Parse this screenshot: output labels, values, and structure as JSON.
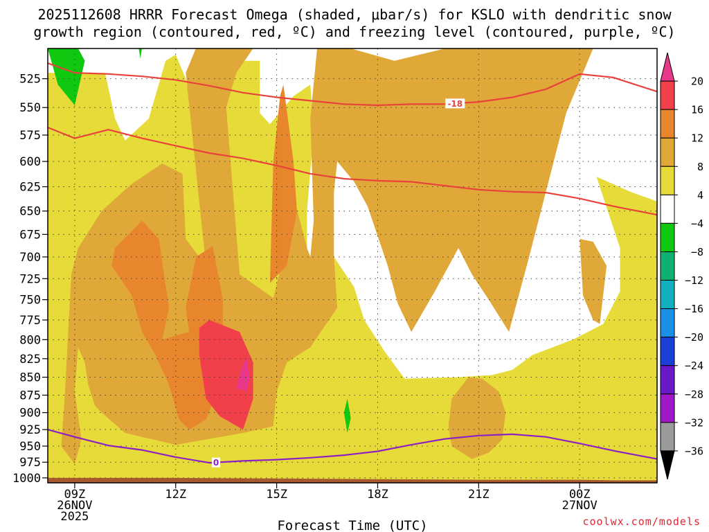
{
  "chart_data": {
    "type": "contour",
    "title_line1": "2025112608 HRRR Forecast Omega (shaded, μbar/s) for KSLO with dendritic snow",
    "title_line2": "growth region (contoured, red, ºC) and freezing level (contoured, purple, ºC)",
    "xlabel": "Forecast Time (UTC)",
    "x_range_hours": [
      -0.8,
      17.3
    ],
    "y_range_hpa": [
      1008,
      500
    ],
    "y_ticks": [
      525,
      550,
      575,
      600,
      625,
      650,
      675,
      700,
      725,
      750,
      775,
      800,
      825,
      850,
      875,
      900,
      925,
      950,
      975,
      1000
    ],
    "x_ticks": [
      {
        "hour": 0,
        "lines": [
          "09Z",
          "26NOV",
          "2025"
        ]
      },
      {
        "hour": 3,
        "lines": [
          "12Z"
        ]
      },
      {
        "hour": 6,
        "lines": [
          "15Z"
        ]
      },
      {
        "hour": 9,
        "lines": [
          "18Z"
        ]
      },
      {
        "hour": 12,
        "lines": [
          "21Z"
        ]
      },
      {
        "hour": 15,
        "lines": [
          "00Z",
          "27NOV"
        ]
      }
    ],
    "colorbar": {
      "levels": [
        20,
        16,
        12,
        8,
        4,
        -4,
        -8,
        -12,
        -16,
        -20,
        -24,
        -28,
        -32,
        -36
      ],
      "colors": [
        "#e8388a",
        "#f2404a",
        "#e8862e",
        "#e0a838",
        "#e6db38",
        "#ffffff",
        "#10c810",
        "#10b070",
        "#10b0c0",
        "#1a90e8",
        "#1a40d8",
        "#6a18c8",
        "#a018c8",
        "#9a9a9a",
        "#000000"
      ]
    },
    "shaded_regions": [
      {
        "level": 4,
        "color": "#e6db38",
        "points": [
          [
            -0.8,
            520
          ],
          [
            0.9,
            520
          ],
          [
            1.2,
            560
          ],
          [
            1.5,
            580
          ],
          [
            2.2,
            560
          ],
          [
            2.7,
            510
          ],
          [
            3.0,
            505
          ],
          [
            3.3,
            525
          ],
          [
            3.5,
            555
          ],
          [
            4.0,
            560
          ],
          [
            4.4,
            510
          ],
          [
            5.5,
            510
          ],
          [
            5.5,
            555
          ],
          [
            5.8,
            565
          ],
          [
            6.5,
            540
          ],
          [
            7.0,
            530
          ],
          [
            7.1,
            570
          ],
          [
            6.9,
            650
          ],
          [
            6.9,
            700
          ],
          [
            7.0,
            740
          ],
          [
            7.3,
            750
          ],
          [
            7.7,
            700
          ],
          [
            8.3,
            735
          ],
          [
            8.6,
            775
          ],
          [
            9.2,
            815
          ],
          [
            9.8,
            852
          ],
          [
            11.4,
            850
          ],
          [
            12.4,
            847
          ],
          [
            13.0,
            840
          ],
          [
            13.6,
            820
          ],
          [
            14.8,
            800
          ],
          [
            15.7,
            780
          ],
          [
            16.2,
            740
          ],
          [
            16.2,
            690
          ],
          [
            15.5,
            615
          ],
          [
            16.5,
            630
          ],
          [
            17.3,
            640
          ],
          [
            17.3,
            1008
          ],
          [
            -0.8,
            1008
          ]
        ]
      },
      {
        "level": 8,
        "color": "#e0a838",
        "points": [
          [
            0.0,
            978
          ],
          [
            -0.4,
            950
          ],
          [
            -0.3,
            880
          ],
          [
            -0.1,
            720
          ],
          [
            0.1,
            690
          ],
          [
            0.8,
            650
          ],
          [
            1.7,
            622
          ],
          [
            2.6,
            602
          ],
          [
            3.2,
            612
          ],
          [
            3.3,
            680
          ],
          [
            3.9,
            710
          ],
          [
            3.3,
            520
          ],
          [
            3.6,
            500
          ],
          [
            5.3,
            500
          ],
          [
            4.8,
            520
          ],
          [
            4.5,
            550
          ],
          [
            4.9,
            720
          ],
          [
            5.9,
            748
          ],
          [
            6.4,
            670
          ],
          [
            6.6,
            648
          ],
          [
            6.9,
            690
          ],
          [
            7.0,
            700
          ],
          [
            7.1,
            660
          ],
          [
            7.0,
            560
          ],
          [
            7.2,
            500
          ],
          [
            8.2,
            500
          ],
          [
            9.5,
            510
          ],
          [
            11.0,
            500
          ],
          [
            15.4,
            500
          ],
          [
            14.6,
            555
          ],
          [
            13.5,
            700
          ],
          [
            12.9,
            790
          ],
          [
            12.3,
            750
          ],
          [
            11.8,
            720
          ],
          [
            11.4,
            690
          ],
          [
            10.7,
            740
          ],
          [
            10.0,
            790
          ],
          [
            9.6,
            755
          ],
          [
            9.3,
            710
          ],
          [
            8.7,
            645
          ],
          [
            8.3,
            620
          ],
          [
            7.8,
            600
          ],
          [
            7.7,
            630
          ],
          [
            7.7,
            700
          ],
          [
            7.8,
            760
          ],
          [
            7.0,
            810
          ],
          [
            6.3,
            830
          ],
          [
            6.0,
            870
          ],
          [
            5.9,
            920
          ],
          [
            5.0,
            930
          ],
          [
            3.0,
            948
          ],
          [
            2.0,
            936
          ],
          [
            1.5,
            930
          ],
          [
            0.8,
            900
          ],
          [
            0.6,
            890
          ],
          [
            0.4,
            860
          ],
          [
            0.3,
            830
          ],
          [
            0.1,
            810
          ],
          [
            0.0,
            870
          ],
          [
            0.2,
            940
          ]
        ]
      },
      {
        "level": 8,
        "color": "#e0a838",
        "points": [
          [
            11.7,
            850
          ],
          [
            11.2,
            880
          ],
          [
            11.1,
            920
          ],
          [
            11.2,
            950
          ],
          [
            11.8,
            970
          ],
          [
            12.3,
            960
          ],
          [
            12.7,
            940
          ],
          [
            12.8,
            900
          ],
          [
            12.6,
            870
          ],
          [
            12.1,
            852
          ]
        ]
      },
      {
        "level": 8,
        "color": "#e0a838",
        "points": [
          [
            15.0,
            680
          ],
          [
            15.4,
            683
          ],
          [
            15.8,
            710
          ],
          [
            15.6,
            780
          ],
          [
            15.4,
            775
          ],
          [
            15.1,
            745
          ]
        ]
      },
      {
        "level": 12,
        "color": "#e8862e",
        "points": [
          [
            1.7,
            745
          ],
          [
            1.1,
            710
          ],
          [
            1.2,
            690
          ],
          [
            2.0,
            660
          ],
          [
            2.5,
            680
          ],
          [
            2.8,
            760
          ],
          [
            2.6,
            800
          ],
          [
            3.4,
            790
          ],
          [
            3.3,
            760
          ],
          [
            3.6,
            700
          ],
          [
            4.1,
            688
          ],
          [
            4.4,
            750
          ],
          [
            4.4,
            850
          ],
          [
            3.9,
            910
          ],
          [
            3.4,
            925
          ],
          [
            3.1,
            910
          ],
          [
            2.8,
            860
          ],
          [
            2.4,
            820
          ],
          [
            2.0,
            790
          ]
        ]
      },
      {
        "level": 12,
        "color": "#e8862e",
        "points": [
          [
            5.8,
            730
          ],
          [
            5.9,
            600
          ],
          [
            6.1,
            540
          ],
          [
            6.2,
            530
          ],
          [
            6.5,
            600
          ],
          [
            6.6,
            650
          ],
          [
            6.3,
            710
          ]
        ]
      },
      {
        "level": 16,
        "color": "#f2404a",
        "points": [
          [
            3.7,
            785
          ],
          [
            4.0,
            775
          ],
          [
            4.9,
            790
          ],
          [
            5.3,
            830
          ],
          [
            5.3,
            880
          ],
          [
            5.0,
            925
          ],
          [
            4.3,
            905
          ],
          [
            3.9,
            880
          ],
          [
            3.7,
            820
          ]
        ]
      },
      {
        "level": 20,
        "color": "#e8388a",
        "points": [
          [
            5.0,
            832
          ],
          [
            5.1,
            825
          ],
          [
            5.2,
            850
          ],
          [
            5.1,
            870
          ],
          [
            4.8,
            865
          ]
        ]
      },
      {
        "level": -4,
        "color": "#10c810",
        "points": [
          [
            -0.8,
            500
          ],
          [
            0.1,
            500
          ],
          [
            0.3,
            510
          ],
          [
            0.0,
            548
          ],
          [
            -0.5,
            530
          ]
        ]
      },
      {
        "level": -4,
        "color": "#10c810",
        "points": [
          [
            8.0,
            900
          ],
          [
            8.1,
            880
          ],
          [
            8.2,
            908
          ],
          [
            8.1,
            930
          ]
        ]
      },
      {
        "level": -4,
        "color": "#10c810",
        "points": [
          [
            1.9,
            500
          ],
          [
            2.0,
            500
          ],
          [
            1.95,
            508
          ]
        ]
      }
    ],
    "contours": [
      {
        "name": "dendritic-top",
        "value": -18,
        "color": "#e8423a",
        "label": "-18",
        "label_hour": 11.3,
        "points": [
          [
            -0.8,
            512
          ],
          [
            0,
            520
          ],
          [
            1,
            521
          ],
          [
            2,
            523
          ],
          [
            3,
            526
          ],
          [
            4,
            531
          ],
          [
            5,
            537
          ],
          [
            6,
            541
          ],
          [
            7,
            544
          ],
          [
            8,
            547
          ],
          [
            9,
            548
          ],
          [
            10,
            547
          ],
          [
            11,
            547
          ],
          [
            12,
            545
          ],
          [
            13,
            541
          ],
          [
            14,
            534
          ],
          [
            15,
            521
          ],
          [
            16,
            524
          ],
          [
            17.3,
            536
          ]
        ]
      },
      {
        "name": "dendritic-bottom",
        "value": -12,
        "color": "#e8423a",
        "label": "",
        "label_hour": 0,
        "points": [
          [
            -0.8,
            568
          ],
          [
            0,
            578
          ],
          [
            1,
            570
          ],
          [
            2,
            578
          ],
          [
            3,
            585
          ],
          [
            4,
            592
          ],
          [
            5,
            597
          ],
          [
            6,
            604
          ],
          [
            7,
            612
          ],
          [
            8,
            617
          ],
          [
            9,
            619
          ],
          [
            10,
            620
          ],
          [
            11,
            624
          ],
          [
            12,
            628
          ],
          [
            13,
            630
          ],
          [
            14,
            631
          ],
          [
            15,
            637
          ],
          [
            16,
            645
          ],
          [
            17.3,
            654
          ]
        ]
      },
      {
        "name": "freezing-level",
        "value": 0,
        "color": "#8c20c4",
        "label": "0",
        "label_hour": 4.2,
        "points": [
          [
            -0.8,
            925
          ],
          [
            0,
            936
          ],
          [
            1,
            949
          ],
          [
            2,
            956
          ],
          [
            3,
            967
          ],
          [
            4,
            976
          ],
          [
            5,
            973
          ],
          [
            6,
            971
          ],
          [
            7,
            968
          ],
          [
            8,
            964
          ],
          [
            9,
            958
          ],
          [
            10,
            948
          ],
          [
            11,
            939
          ],
          [
            12,
            934
          ],
          [
            13,
            932
          ],
          [
            14,
            936
          ],
          [
            15,
            946
          ],
          [
            16,
            957
          ],
          [
            17.3,
            970
          ]
        ]
      }
    ],
    "terrain": {
      "color": "#a85a2e",
      "points": [
        [
          -0.8,
          1000
        ],
        [
          3,
          1000
        ],
        [
          6,
          1001
        ],
        [
          9,
          1002
        ],
        [
          12,
          1003
        ],
        [
          15,
          1003
        ],
        [
          16,
          1004
        ],
        [
          17.3,
          1004
        ],
        [
          17.3,
          1008
        ],
        [
          -0.8,
          1008
        ]
      ]
    }
  },
  "credit": "coolwx.com/models"
}
